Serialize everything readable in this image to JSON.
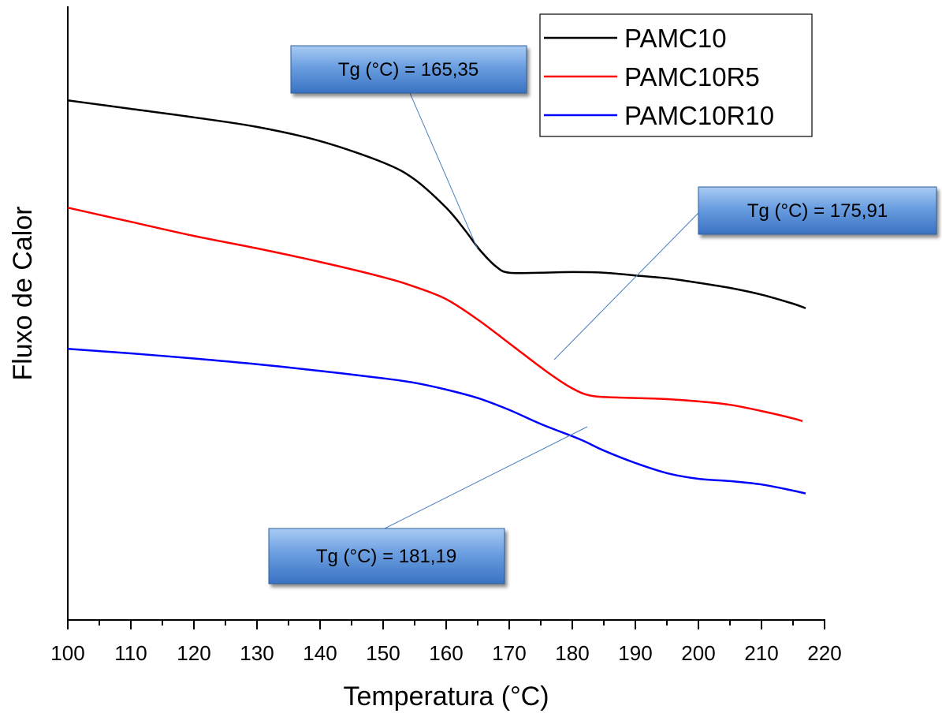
{
  "chart_data": {
    "type": "line",
    "title": "",
    "xlabel": "Temperatura (°C)",
    "ylabel": "Fluxo de Calor",
    "xlim": [
      100,
      220
    ],
    "x_ticks": [
      100,
      110,
      120,
      130,
      140,
      150,
      160,
      170,
      180,
      190,
      200,
      210,
      220
    ],
    "y_ticks_shown": false,
    "grid": false,
    "legend_position": "top-right",
    "series": [
      {
        "name": "PAMC10",
        "color": "#000000",
        "points": [
          [
            100,
            0.92
          ],
          [
            110,
            0.905
          ],
          [
            120,
            0.89
          ],
          [
            130,
            0.873
          ],
          [
            140,
            0.848
          ],
          [
            150,
            0.81
          ],
          [
            155,
            0.78
          ],
          [
            160,
            0.73
          ],
          [
            163,
            0.69
          ],
          [
            165.35,
            0.655
          ],
          [
            168,
            0.625
          ],
          [
            170,
            0.615
          ],
          [
            175,
            0.615
          ],
          [
            180,
            0.616
          ],
          [
            185,
            0.615
          ],
          [
            190,
            0.61
          ],
          [
            195,
            0.605
          ],
          [
            200,
            0.597
          ],
          [
            205,
            0.588
          ],
          [
            210,
            0.576
          ],
          [
            215,
            0.56
          ],
          [
            217,
            0.552
          ]
        ]
      },
      {
        "name": "PAMC10R5",
        "color": "#ff0000",
        "points": [
          [
            100,
            0.73
          ],
          [
            110,
            0.705
          ],
          [
            120,
            0.68
          ],
          [
            130,
            0.658
          ],
          [
            140,
            0.634
          ],
          [
            150,
            0.607
          ],
          [
            155,
            0.59
          ],
          [
            160,
            0.568
          ],
          [
            165,
            0.532
          ],
          [
            170,
            0.49
          ],
          [
            175.91,
            0.44
          ],
          [
            180,
            0.41
          ],
          [
            183,
            0.397
          ],
          [
            187,
            0.394
          ],
          [
            190,
            0.393
          ],
          [
            195,
            0.391
          ],
          [
            200,
            0.387
          ],
          [
            205,
            0.381
          ],
          [
            210,
            0.37
          ],
          [
            215,
            0.357
          ],
          [
            216.5,
            0.352
          ]
        ]
      },
      {
        "name": "PAMC10R10",
        "color": "#0000ff",
        "points": [
          [
            100,
            0.48
          ],
          [
            110,
            0.472
          ],
          [
            120,
            0.463
          ],
          [
            130,
            0.453
          ],
          [
            140,
            0.441
          ],
          [
            150,
            0.428
          ],
          [
            155,
            0.42
          ],
          [
            160,
            0.408
          ],
          [
            165,
            0.393
          ],
          [
            170,
            0.372
          ],
          [
            175,
            0.347
          ],
          [
            181.19,
            0.32
          ],
          [
            185,
            0.3
          ],
          [
            190,
            0.278
          ],
          [
            195,
            0.26
          ],
          [
            200,
            0.25
          ],
          [
            205,
            0.246
          ],
          [
            210,
            0.24
          ],
          [
            215,
            0.229
          ],
          [
            217,
            0.224
          ]
        ]
      }
    ],
    "annotations": [
      {
        "text": "Tg (°C) = 165,35",
        "x": 165.35,
        "series": "PAMC10"
      },
      {
        "text": "Tg (°C) = 175,91",
        "x": 175.91,
        "series": "PAMC10R5"
      },
      {
        "text": "Tg (°C) = 181,19",
        "x": 181.19,
        "series": "PAMC10R10"
      }
    ]
  },
  "colors": {
    "callout_fill_top": "#9dc3f0",
    "callout_fill_bottom": "#3d78c8",
    "callout_border": "#2f5f9e",
    "leader_line": "#4a7fc0"
  }
}
